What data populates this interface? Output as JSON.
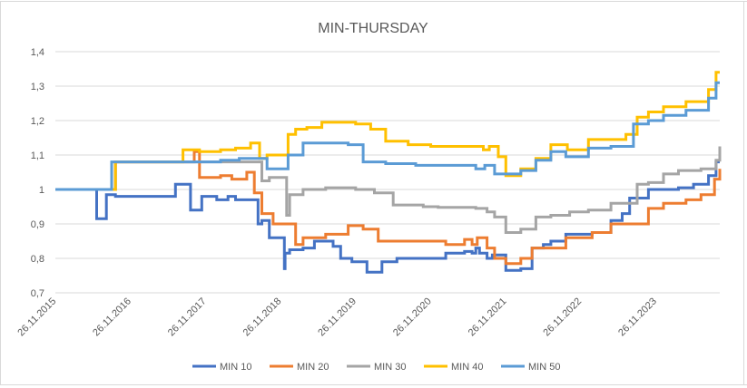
{
  "chart_data": {
    "type": "line",
    "title": "MIN-THURSDAY",
    "xlabel": "",
    "ylabel": "",
    "ylim": [
      0.7,
      1.4
    ],
    "yticks": [
      0.7,
      0.8,
      0.9,
      1.0,
      1.1,
      1.2,
      1.3,
      1.4
    ],
    "ytick_labels": [
      "0,7",
      "0,8",
      "0,9",
      "1",
      "1,1",
      "1,2",
      "1,3",
      "1,4"
    ],
    "xlim": [
      2015.0,
      2023.85
    ],
    "xticks": [
      2015,
      2016,
      2017,
      2018,
      2019,
      2020,
      2021,
      2022,
      2023
    ],
    "xtick_labels": [
      "26.11.2015",
      "26.11.2016",
      "26.11.2017",
      "26.11.2018",
      "26.11.2019",
      "26.11.2020",
      "26.11.2021",
      "26.11.2022",
      "26.11.2023"
    ],
    "grid": true,
    "legend_position": "bottom",
    "series": [
      {
        "name": "MIN 10",
        "color": "#4472c4",
        "x": [
          2015.0,
          2015.55,
          2015.68,
          2015.8,
          2016.6,
          2016.8,
          2016.95,
          2017.15,
          2017.3,
          2017.4,
          2017.6,
          2017.7,
          2017.75,
          2017.85,
          2018.05,
          2018.06,
          2018.12,
          2018.3,
          2018.45,
          2018.7,
          2018.8,
          2018.95,
          2019.15,
          2019.35,
          2019.55,
          2020.2,
          2020.45,
          2020.55,
          2020.6,
          2020.65,
          2020.75,
          2020.82,
          2021.0,
          2021.2,
          2021.35,
          2021.5,
          2021.6,
          2021.8,
          2022.0,
          2022.15,
          2022.4,
          2022.55,
          2022.65,
          2022.9,
          2023.3,
          2023.5,
          2023.7,
          2023.8,
          2023.85
        ],
        "values": [
          1.0,
          0.915,
          0.985,
          0.98,
          1.015,
          0.94,
          0.98,
          0.97,
          0.98,
          0.97,
          0.97,
          0.9,
          0.91,
          0.86,
          0.77,
          0.815,
          0.825,
          0.83,
          0.85,
          0.835,
          0.8,
          0.79,
          0.76,
          0.79,
          0.8,
          0.815,
          0.82,
          0.815,
          0.83,
          0.815,
          0.8,
          0.81,
          0.765,
          0.77,
          0.83,
          0.84,
          0.85,
          0.87,
          0.87,
          0.875,
          0.91,
          0.93,
          0.975,
          1.0,
          1.005,
          1.015,
          1.04,
          1.08,
          1.08
        ]
      },
      {
        "name": "MIN 20",
        "color": "#ed7d31",
        "x": [
          2015.0,
          2015.8,
          2016.85,
          2016.92,
          2017.2,
          2017.35,
          2017.55,
          2017.65,
          2017.75,
          2017.9,
          2018.2,
          2018.3,
          2018.6,
          2018.75,
          2018.9,
          2019.1,
          2019.3,
          2020.2,
          2020.4,
          2020.45,
          2020.55,
          2020.62,
          2020.75,
          2020.85,
          2021.0,
          2021.2,
          2021.35,
          2021.6,
          2021.8,
          2022.0,
          2022.15,
          2022.4,
          2022.6,
          2022.9,
          2023.1,
          2023.4,
          2023.6,
          2023.78,
          2023.85
        ],
        "values": [
          1.0,
          1.08,
          1.11,
          1.035,
          1.04,
          1.03,
          1.05,
          0.99,
          0.93,
          0.9,
          0.84,
          0.86,
          0.87,
          0.87,
          0.895,
          0.885,
          0.85,
          0.84,
          0.84,
          0.855,
          0.84,
          0.86,
          0.83,
          0.8,
          0.785,
          0.8,
          0.83,
          0.83,
          0.86,
          0.86,
          0.875,
          0.9,
          0.9,
          0.945,
          0.96,
          0.97,
          0.985,
          1.03,
          1.06
        ]
      },
      {
        "name": "MIN 30",
        "color": "#a5a5a5",
        "x": [
          2015.0,
          2015.8,
          2016.85,
          2017.45,
          2017.65,
          2017.75,
          2017.85,
          2018.08,
          2018.12,
          2018.3,
          2018.6,
          2019.0,
          2019.25,
          2019.5,
          2019.9,
          2020.1,
          2020.2,
          2020.6,
          2020.75,
          2020.85,
          2021.0,
          2021.2,
          2021.4,
          2021.6,
          2021.85,
          2022.1,
          2022.4,
          2022.75,
          2022.9,
          2023.1,
          2023.3,
          2023.6,
          2023.8,
          2023.85
        ],
        "values": [
          1.0,
          1.08,
          1.08,
          1.08,
          1.08,
          1.025,
          1.035,
          0.925,
          0.985,
          1.0,
          1.005,
          1.0,
          0.99,
          0.955,
          0.95,
          0.948,
          0.948,
          0.945,
          0.935,
          0.92,
          0.875,
          0.885,
          0.92,
          0.925,
          0.935,
          0.94,
          0.96,
          1.015,
          1.02,
          1.045,
          1.055,
          1.06,
          1.085,
          1.125
        ]
      },
      {
        "name": "MIN 40",
        "color": "#ffc000",
        "x": [
          2015.0,
          2015.8,
          2016.7,
          2016.92,
          2017.2,
          2017.4,
          2017.6,
          2017.72,
          2017.82,
          2018.1,
          2018.2,
          2018.35,
          2018.55,
          2018.85,
          2019.0,
          2019.2,
          2019.4,
          2019.7,
          2020.0,
          2020.2,
          2020.6,
          2020.7,
          2020.78,
          2020.9,
          2021.0,
          2021.2,
          2021.4,
          2021.6,
          2021.82,
          2022.1,
          2022.4,
          2022.6,
          2022.75,
          2022.9,
          2023.1,
          2023.4,
          2023.7,
          2023.8,
          2023.85
        ],
        "values": [
          1.0,
          1.08,
          1.115,
          1.11,
          1.115,
          1.12,
          1.135,
          1.09,
          1.1,
          1.16,
          1.175,
          1.18,
          1.195,
          1.195,
          1.19,
          1.175,
          1.14,
          1.13,
          1.125,
          1.125,
          1.125,
          1.115,
          1.125,
          1.095,
          1.04,
          1.06,
          1.09,
          1.13,
          1.115,
          1.145,
          1.145,
          1.16,
          1.21,
          1.225,
          1.24,
          1.255,
          1.29,
          1.34,
          1.34
        ]
      },
      {
        "name": "MIN 50",
        "color": "#5b9bd5",
        "x": [
          2015.0,
          2015.75,
          2016.6,
          2017.2,
          2017.45,
          2017.7,
          2017.82,
          2018.1,
          2018.3,
          2018.55,
          2018.9,
          2019.1,
          2019.4,
          2019.8,
          2020.1,
          2020.6,
          2020.72,
          2020.85,
          2021.0,
          2021.2,
          2021.4,
          2021.6,
          2021.8,
          2022.1,
          2022.4,
          2022.7,
          2022.9,
          2023.1,
          2023.4,
          2023.7,
          2023.8,
          2023.85
        ],
        "values": [
          1.0,
          1.08,
          1.08,
          1.085,
          1.09,
          1.09,
          1.06,
          1.1,
          1.135,
          1.135,
          1.13,
          1.08,
          1.075,
          1.07,
          1.07,
          1.06,
          1.07,
          1.045,
          1.045,
          1.055,
          1.085,
          1.11,
          1.095,
          1.12,
          1.125,
          1.19,
          1.2,
          1.215,
          1.23,
          1.265,
          1.31,
          1.31
        ]
      }
    ]
  }
}
